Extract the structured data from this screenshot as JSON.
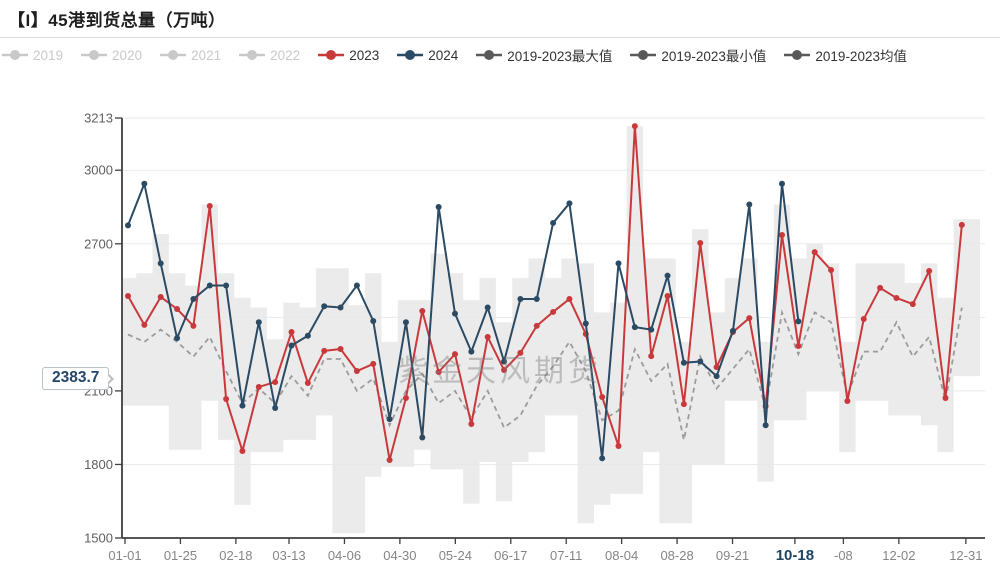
{
  "title": "【I】45港到货总量（万吨）",
  "watermark": "紫金天风期货",
  "callout": {
    "value": "2383.7"
  },
  "colors": {
    "red": "#c9393c",
    "navy": "#2b4a63",
    "band": "#e7e7e7",
    "mean": "#9b9b9b",
    "grid": "#eaeaea",
    "axis": "#3f3f3f",
    "y_label": "#5f5f5f",
    "x_label": "#858585",
    "highlight_date": "#1f4462",
    "disabled_legend": "#c9c9c9",
    "dark_legend": "#595959"
  },
  "legend": {
    "items": [
      {
        "label": "2019",
        "disabled": true
      },
      {
        "label": "2020",
        "disabled": true
      },
      {
        "label": "2021",
        "disabled": true
      },
      {
        "label": "2022",
        "disabled": true
      },
      {
        "label": "2023",
        "disabled": false,
        "color": "#c9393c"
      },
      {
        "label": "2024",
        "disabled": false,
        "color": "#2b4a63"
      },
      {
        "label": "2019-2023最大值",
        "disabled": false,
        "color": "#595959"
      },
      {
        "label": "2019-2023最小值",
        "disabled": false,
        "color": "#595959"
      },
      {
        "label": "2019-2023均值",
        "disabled": false,
        "color": "#595959"
      }
    ]
  },
  "chart_data": {
    "type": "line",
    "title": "【I】45港到货总量（万吨）",
    "ylabel": "万吨",
    "ylim": [
      1500,
      3213
    ],
    "y_ticks": [
      3213,
      3000,
      2700,
      2100,
      1800,
      1500
    ],
    "grid_values": [
      1800,
      2100,
      2400,
      2700,
      3000,
      3213
    ],
    "points_are_weekly": true,
    "x_ticks": [
      {
        "label": "01-01",
        "day": 0
      },
      {
        "label": "01-25",
        "day": 24
      },
      {
        "label": "02-18",
        "day": 48
      },
      {
        "label": "03-13",
        "day": 71
      },
      {
        "label": "04-06",
        "day": 95
      },
      {
        "label": "04-30",
        "day": 119
      },
      {
        "label": "05-24",
        "day": 143
      },
      {
        "label": "06-17",
        "day": 167
      },
      {
        "label": "07-11",
        "day": 191
      },
      {
        "label": "08-04",
        "day": 215
      },
      {
        "label": "08-28",
        "day": 239
      },
      {
        "label": "09-21",
        "day": 263
      },
      {
        "label": "10-18",
        "day": 290,
        "bold": true
      },
      {
        "label": "-08",
        "day": 311
      },
      {
        "label": "12-02",
        "day": 335
      },
      {
        "label": "12-31",
        "day": 364
      }
    ],
    "series": [
      {
        "name": "2023",
        "color": "#c9393c",
        "style": "line-dots",
        "values": [
          2487,
          2369,
          2483,
          2434,
          2365,
          2854,
          2067,
          1855,
          2116,
          2136,
          2340,
          2132,
          2263,
          2271,
          2181,
          2210,
          1818,
          2071,
          2426,
          2177,
          2250,
          1965,
          2320,
          2185,
          2255,
          2365,
          2422,
          2475,
          2332,
          2075,
          1875,
          3180,
          2242,
          2487,
          2046,
          2703,
          2197,
          2340,
          2397,
          2038,
          2736,
          2283,
          2666,
          2593,
          2059,
          2393,
          2520,
          2479,
          2454,
          2589,
          2071,
          2777
        ]
      },
      {
        "name": "2024",
        "color": "#2b4a63",
        "style": "line-dots",
        "last_value_label": "2383.7",
        "values": [
          2775,
          2945,
          2620,
          2315,
          2475,
          2530,
          2530,
          2040,
          2380,
          2030,
          2285,
          2325,
          2445,
          2440,
          2530,
          2385,
          1985,
          2380,
          1910,
          2850,
          2415,
          2260,
          2440,
          2220,
          2475,
          2475,
          2785,
          2865,
          2375,
          1825,
          2620,
          2360,
          2350,
          2570,
          2215,
          2220,
          2160,
          2345,
          2860,
          1960,
          2945,
          2383.7
        ]
      },
      {
        "name": "2019-2023最大值",
        "color": "#e7e7e7",
        "style": "band-top",
        "values": [
          2560,
          2580,
          2740,
          2580,
          2530,
          2860,
          2580,
          2480,
          2440,
          2310,
          2460,
          2440,
          2600,
          2600,
          2450,
          2580,
          2300,
          2470,
          2470,
          2660,
          2580,
          2470,
          2560,
          2380,
          2560,
          2640,
          2560,
          2640,
          2620,
          2420,
          2460,
          3180,
          2640,
          2640,
          2300,
          2760,
          2420,
          2560,
          2640,
          2300,
          2860,
          2640,
          2700,
          2620,
          2300,
          2620,
          2620,
          2620,
          2540,
          2620,
          2480,
          2800
        ]
      },
      {
        "name": "2019-2023最小值",
        "color": "#e7e7e7",
        "style": "band-bottom",
        "values": [
          2040,
          2040,
          2040,
          1860,
          1860,
          2060,
          1900,
          1635,
          1850,
          1850,
          1900,
          1900,
          2000,
          1520,
          1520,
          1750,
          1790,
          1790,
          1860,
          1780,
          1780,
          1640,
          1810,
          1650,
          1810,
          1850,
          2000,
          2000,
          1560,
          1635,
          1680,
          1680,
          1850,
          1560,
          1560,
          1800,
          1800,
          2060,
          2060,
          1730,
          1980,
          1980,
          2100,
          2100,
          1850,
          2060,
          2060,
          2000,
          2000,
          1960,
          1850,
          2160
        ]
      },
      {
        "name": "2019-2023均值",
        "color": "#9b9b9b",
        "style": "dashed",
        "values": [
          2330,
          2300,
          2350,
          2300,
          2240,
          2320,
          2180,
          2050,
          2110,
          2050,
          2160,
          2080,
          2230,
          2230,
          2100,
          2150,
          1960,
          2100,
          2170,
          2050,
          2100,
          1990,
          2100,
          1950,
          2000,
          2120,
          2200,
          2300,
          2180,
          1980,
          2020,
          2270,
          2140,
          2210,
          1900,
          2240,
          2110,
          2190,
          2270,
          2030,
          2420,
          2250,
          2420,
          2380,
          2080,
          2260,
          2260,
          2380,
          2240,
          2320,
          2060,
          2440
        ]
      }
    ],
    "legend_position": "top",
    "grid": true
  }
}
